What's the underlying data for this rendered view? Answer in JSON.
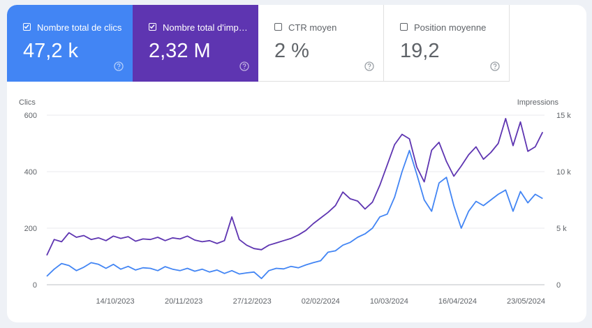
{
  "metrics": {
    "clicks": {
      "label": "Nombre total de clics",
      "value": "47,2 k",
      "checked": true
    },
    "impressions": {
      "label": "Nombre total d'impressions",
      "value": "2,32 M",
      "checked": true
    },
    "ctr": {
      "label": "CTR moyen",
      "value": "2 %",
      "checked": false
    },
    "position": {
      "label": "Position moyenne",
      "value": "19,2",
      "checked": false
    }
  },
  "colors": {
    "clicks": "#4285f4",
    "impressions": "#5e35b1",
    "grid": "#e8eaed"
  },
  "chart_data": {
    "type": "line",
    "left_axis": {
      "title": "Clics",
      "ticks": [
        "0",
        "200",
        "400",
        "600"
      ],
      "ylim": [
        0,
        600
      ]
    },
    "right_axis": {
      "title": "Impressions",
      "ticks": [
        "0",
        "5 k",
        "10 k",
        "15 k"
      ],
      "ylim": [
        0,
        15000
      ]
    },
    "x_ticks": [
      "14/10/2023",
      "20/11/2023",
      "27/12/2023",
      "02/02/2024",
      "10/03/2024",
      "16/04/2024",
      "23/05/2024"
    ],
    "x_range": [
      "2023-09-07",
      "2024-06-02"
    ],
    "grid": true,
    "series": [
      {
        "name": "Nombre total de clics",
        "axis": "left",
        "points": [
          [
            "2023-09-07",
            30
          ],
          [
            "2023-09-11",
            55
          ],
          [
            "2023-09-15",
            75
          ],
          [
            "2023-09-19",
            68
          ],
          [
            "2023-09-23",
            50
          ],
          [
            "2023-09-27",
            62
          ],
          [
            "2023-10-01",
            78
          ],
          [
            "2023-10-05",
            72
          ],
          [
            "2023-10-09",
            58
          ],
          [
            "2023-10-13",
            72
          ],
          [
            "2023-10-17",
            55
          ],
          [
            "2023-10-21",
            65
          ],
          [
            "2023-10-25",
            52
          ],
          [
            "2023-10-29",
            60
          ],
          [
            "2023-11-02",
            58
          ],
          [
            "2023-11-06",
            50
          ],
          [
            "2023-11-10",
            64
          ],
          [
            "2023-11-14",
            55
          ],
          [
            "2023-11-18",
            50
          ],
          [
            "2023-11-22",
            58
          ],
          [
            "2023-11-26",
            48
          ],
          [
            "2023-11-30",
            55
          ],
          [
            "2023-12-04",
            45
          ],
          [
            "2023-12-08",
            52
          ],
          [
            "2023-12-12",
            40
          ],
          [
            "2023-12-16",
            50
          ],
          [
            "2023-12-20",
            38
          ],
          [
            "2023-12-24",
            42
          ],
          [
            "2023-12-28",
            45
          ],
          [
            "2024-01-01",
            22
          ],
          [
            "2024-01-05",
            50
          ],
          [
            "2024-01-09",
            58
          ],
          [
            "2024-01-13",
            56
          ],
          [
            "2024-01-17",
            65
          ],
          [
            "2024-01-21",
            60
          ],
          [
            "2024-01-25",
            70
          ],
          [
            "2024-01-29",
            78
          ],
          [
            "2024-02-02",
            85
          ],
          [
            "2024-02-06",
            115
          ],
          [
            "2024-02-10",
            120
          ],
          [
            "2024-02-14",
            140
          ],
          [
            "2024-02-18",
            150
          ],
          [
            "2024-02-22",
            168
          ],
          [
            "2024-02-26",
            180
          ],
          [
            "2024-03-01",
            200
          ],
          [
            "2024-03-05",
            240
          ],
          [
            "2024-03-09",
            250
          ],
          [
            "2024-03-13",
            310
          ],
          [
            "2024-03-17",
            400
          ],
          [
            "2024-03-21",
            475
          ],
          [
            "2024-03-25",
            390
          ],
          [
            "2024-03-29",
            300
          ],
          [
            "2024-04-02",
            260
          ],
          [
            "2024-04-06",
            360
          ],
          [
            "2024-04-10",
            380
          ],
          [
            "2024-04-14",
            280
          ],
          [
            "2024-04-18",
            200
          ],
          [
            "2024-04-22",
            260
          ],
          [
            "2024-04-26",
            295
          ],
          [
            "2024-04-30",
            280
          ],
          [
            "2024-05-04",
            300
          ],
          [
            "2024-05-08",
            320
          ],
          [
            "2024-05-12",
            335
          ],
          [
            "2024-05-16",
            260
          ],
          [
            "2024-05-20",
            330
          ],
          [
            "2024-05-24",
            290
          ],
          [
            "2024-05-28",
            320
          ],
          [
            "2024-06-01",
            305
          ]
        ]
      },
      {
        "name": "Nombre total d'impressions",
        "axis": "right",
        "points": [
          [
            "2023-09-07",
            2600
          ],
          [
            "2023-09-11",
            4000
          ],
          [
            "2023-09-15",
            3800
          ],
          [
            "2023-09-19",
            4600
          ],
          [
            "2023-09-23",
            4200
          ],
          [
            "2023-09-27",
            4350
          ],
          [
            "2023-10-01",
            4000
          ],
          [
            "2023-10-05",
            4150
          ],
          [
            "2023-10-09",
            3900
          ],
          [
            "2023-10-13",
            4300
          ],
          [
            "2023-10-17",
            4100
          ],
          [
            "2023-10-21",
            4250
          ],
          [
            "2023-10-25",
            3850
          ],
          [
            "2023-10-29",
            4050
          ],
          [
            "2023-11-02",
            4000
          ],
          [
            "2023-11-06",
            4200
          ],
          [
            "2023-11-10",
            3900
          ],
          [
            "2023-11-14",
            4150
          ],
          [
            "2023-11-18",
            4050
          ],
          [
            "2023-11-22",
            4300
          ],
          [
            "2023-11-26",
            3950
          ],
          [
            "2023-11-30",
            3800
          ],
          [
            "2023-12-04",
            3900
          ],
          [
            "2023-12-08",
            3650
          ],
          [
            "2023-12-12",
            3900
          ],
          [
            "2023-12-16",
            6000
          ],
          [
            "2023-12-20",
            4000
          ],
          [
            "2023-12-24",
            3500
          ],
          [
            "2023-12-28",
            3200
          ],
          [
            "2024-01-01",
            3100
          ],
          [
            "2024-01-05",
            3500
          ],
          [
            "2024-01-09",
            3700
          ],
          [
            "2024-01-13",
            3900
          ],
          [
            "2024-01-17",
            4100
          ],
          [
            "2024-01-21",
            4400
          ],
          [
            "2024-01-25",
            4800
          ],
          [
            "2024-01-29",
            5400
          ],
          [
            "2024-02-02",
            5900
          ],
          [
            "2024-02-06",
            6400
          ],
          [
            "2024-02-10",
            7000
          ],
          [
            "2024-02-14",
            8200
          ],
          [
            "2024-02-18",
            7600
          ],
          [
            "2024-02-22",
            7400
          ],
          [
            "2024-02-26",
            6700
          ],
          [
            "2024-03-01",
            7300
          ],
          [
            "2024-03-05",
            8800
          ],
          [
            "2024-03-09",
            10600
          ],
          [
            "2024-03-13",
            12400
          ],
          [
            "2024-03-17",
            13300
          ],
          [
            "2024-03-21",
            12900
          ],
          [
            "2024-03-25",
            10400
          ],
          [
            "2024-03-29",
            9100
          ],
          [
            "2024-04-02",
            11900
          ],
          [
            "2024-04-06",
            12600
          ],
          [
            "2024-04-10",
            10900
          ],
          [
            "2024-04-14",
            9600
          ],
          [
            "2024-04-18",
            10500
          ],
          [
            "2024-04-22",
            11500
          ],
          [
            "2024-04-26",
            12200
          ],
          [
            "2024-04-30",
            11100
          ],
          [
            "2024-05-04",
            11700
          ],
          [
            "2024-05-08",
            12500
          ],
          [
            "2024-05-12",
            14700
          ],
          [
            "2024-05-16",
            12300
          ],
          [
            "2024-05-20",
            14400
          ],
          [
            "2024-05-24",
            11800
          ],
          [
            "2024-05-28",
            12200
          ],
          [
            "2024-06-01",
            13500
          ]
        ]
      }
    ]
  }
}
